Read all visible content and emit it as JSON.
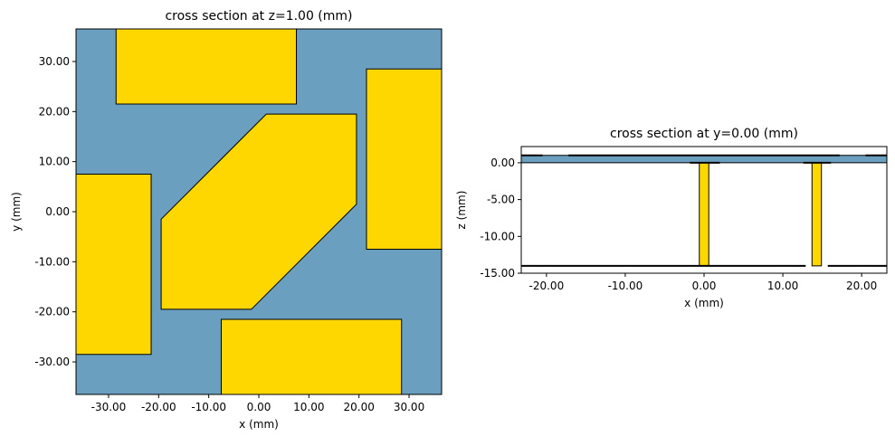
{
  "chart_data": [
    {
      "type": "cross_section",
      "title": "cross section at z=1.00 (mm)",
      "xlabel": "x (mm)",
      "ylabel": "y (mm)",
      "facecolor": "#6a9fbf",
      "xlim": [
        -36.5,
        36.5
      ],
      "ylim": [
        -36.5,
        36.5
      ],
      "xticks": [
        {
          "value": -30,
          "label": "-30.00"
        },
        {
          "value": -20,
          "label": "-20.00"
        },
        {
          "value": -10,
          "label": "-10.00"
        },
        {
          "value": 0,
          "label": "0.00"
        },
        {
          "value": 10,
          "label": "10.00"
        },
        {
          "value": 20,
          "label": "20.00"
        },
        {
          "value": 30,
          "label": "30.00"
        }
      ],
      "yticks": [
        {
          "value": -30,
          "label": "-30.00"
        },
        {
          "value": -20,
          "label": "-20.00"
        },
        {
          "value": -10,
          "label": "-10.00"
        },
        {
          "value": 0,
          "label": "0.00"
        },
        {
          "value": 10,
          "label": "10.00"
        },
        {
          "value": 20,
          "label": "20.00"
        },
        {
          "value": 30,
          "label": "30.00"
        }
      ],
      "shapes": [
        {
          "color": "#ffd700",
          "points": [
            [
              -28.5,
              21.5
            ],
            [
              7.5,
              21.5
            ],
            [
              7.5,
              40
            ],
            [
              -28.5,
              40
            ]
          ]
        },
        {
          "color": "#ffd700",
          "points": [
            [
              21.5,
              -7.5
            ],
            [
              40,
              -7.5
            ],
            [
              40,
              28.5
            ],
            [
              21.5,
              28.5
            ]
          ]
        },
        {
          "color": "#ffd700",
          "points": [
            [
              -7.5,
              -40
            ],
            [
              28.5,
              -40
            ],
            [
              28.5,
              -21.5
            ],
            [
              -7.5,
              -21.5
            ]
          ]
        },
        {
          "color": "#ffd700",
          "points": [
            [
              -40,
              -28.5
            ],
            [
              -21.5,
              -28.5
            ],
            [
              -21.5,
              7.5
            ],
            [
              -40,
              7.5
            ]
          ]
        },
        {
          "color": "#ffd700",
          "points": [
            [
              -19.5,
              -1.5
            ],
            [
              -19.5,
              -19.5
            ],
            [
              -1.5,
              -19.5
            ],
            [
              19.5,
              1.5
            ],
            [
              19.5,
              19.5
            ],
            [
              1.5,
              19.5
            ]
          ]
        }
      ],
      "lines": []
    },
    {
      "type": "cross_section",
      "title": "cross section at y=0.00 (mm)",
      "xlabel": "x (mm)",
      "ylabel": "z (mm)",
      "facecolor": "#ffffff",
      "xlim": [
        -23.2,
        23.2
      ],
      "ylim": [
        -15,
        2.2
      ],
      "xticks": [
        {
          "value": -20,
          "label": "-20.00"
        },
        {
          "value": -10,
          "label": "-10.00"
        },
        {
          "value": 0,
          "label": "0.00"
        },
        {
          "value": 10,
          "label": "10.00"
        },
        {
          "value": 20,
          "label": "20.00"
        }
      ],
      "yticks": [
        {
          "value": 0,
          "label": "0.00"
        },
        {
          "value": -5,
          "label": "-5.00"
        },
        {
          "value": -10,
          "label": "-10.00"
        },
        {
          "value": -15,
          "label": "-15.00"
        }
      ],
      "shapes": [
        {
          "color": "#6a9fbf",
          "points": [
            [
              -25,
              0
            ],
            [
              25,
              0
            ],
            [
              25,
              1
            ],
            [
              -25,
              1
            ]
          ]
        },
        {
          "color": "#ffd700",
          "points": [
            [
              -0.6,
              -14
            ],
            [
              0.6,
              -14
            ],
            [
              0.6,
              0
            ],
            [
              -0.6,
              0
            ]
          ]
        },
        {
          "color": "#ffd700",
          "points": [
            [
              13.7,
              -14
            ],
            [
              14.9,
              -14
            ],
            [
              14.9,
              0
            ],
            [
              13.7,
              0
            ]
          ]
        }
      ],
      "lines": [
        {
          "color": "#000000",
          "points": [
            [
              -25,
              1
            ],
            [
              -20.5,
              1
            ]
          ]
        },
        {
          "color": "#000000",
          "points": [
            [
              -17.2,
              1
            ],
            [
              17.2,
              1
            ]
          ]
        },
        {
          "color": "#000000",
          "points": [
            [
              20.5,
              1
            ],
            [
              25,
              1
            ]
          ]
        },
        {
          "color": "#000000",
          "points": [
            [
              -1.8,
              0
            ],
            [
              2.0,
              0
            ]
          ]
        },
        {
          "color": "#000000",
          "points": [
            [
              12.6,
              0
            ],
            [
              16.1,
              0
            ]
          ]
        },
        {
          "color": "#000000",
          "points": [
            [
              -25,
              -14
            ],
            [
              12.9,
              -14
            ]
          ]
        },
        {
          "color": "#000000",
          "points": [
            [
              15.7,
              -14
            ],
            [
              25,
              -14
            ]
          ]
        }
      ]
    }
  ]
}
